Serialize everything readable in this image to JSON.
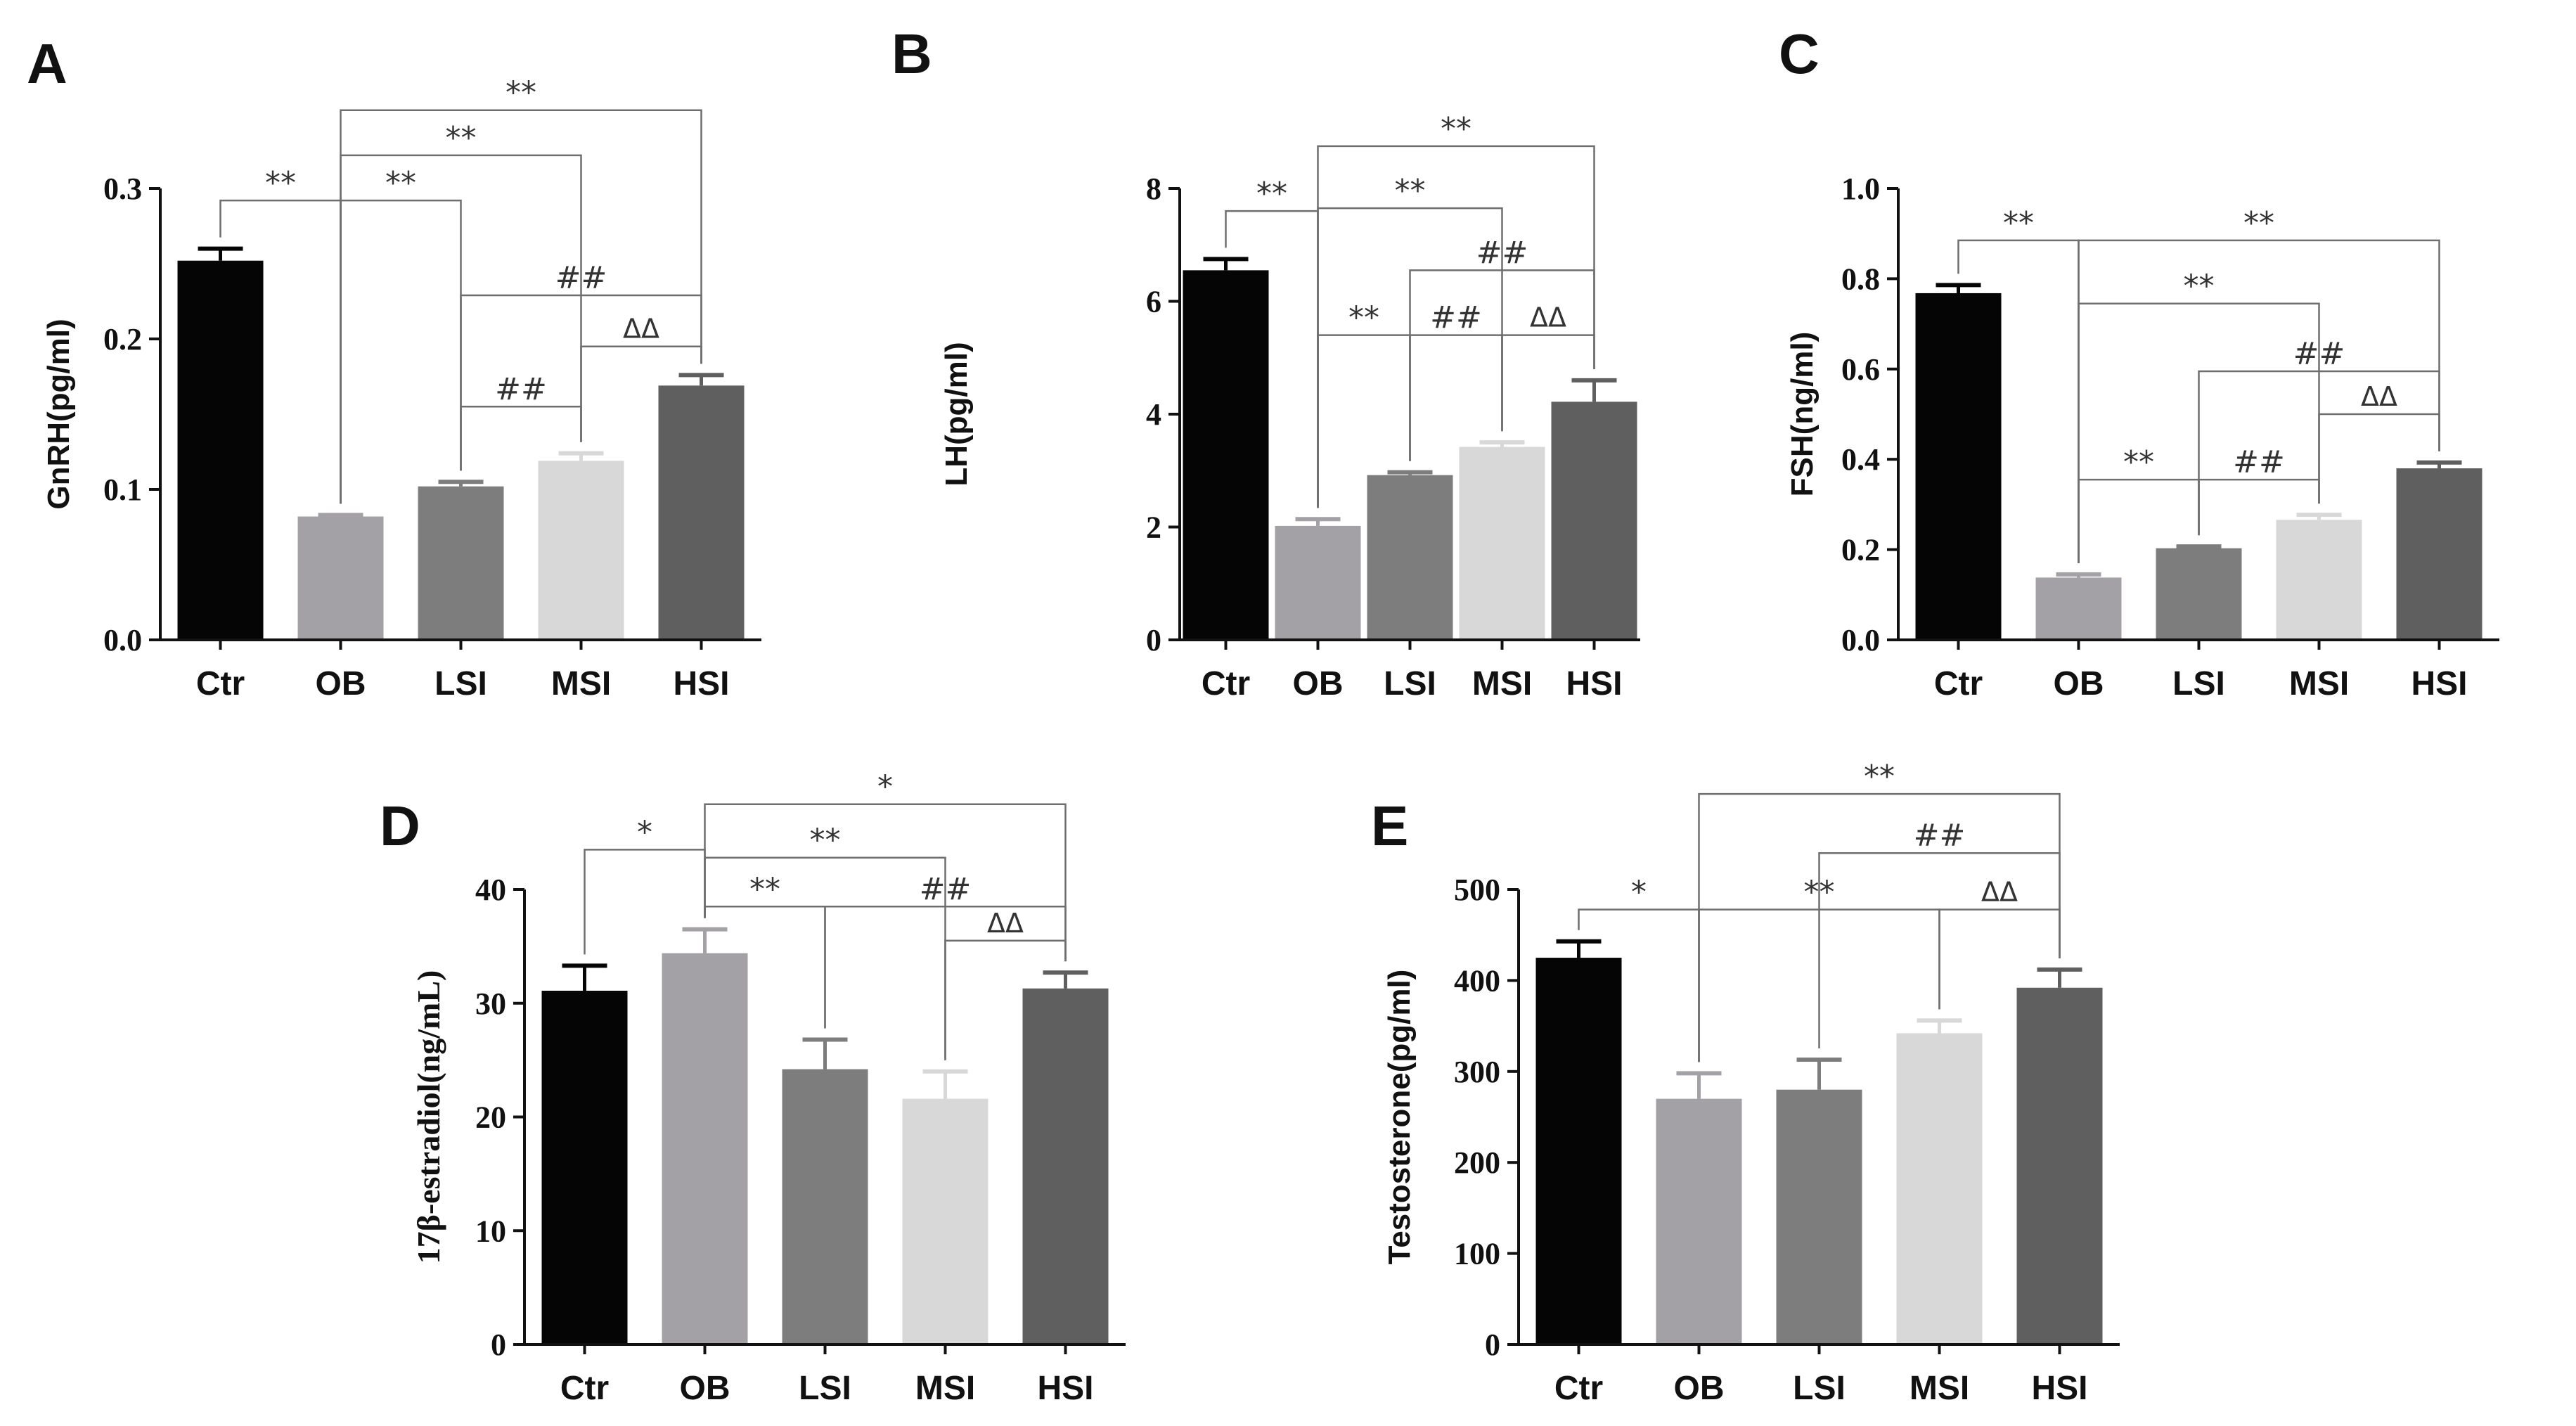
{
  "colors": {
    "Ctr": "#050505",
    "OB": "#a3a1a6",
    "LSI": "#7d7d7d",
    "MSI": "#d8d8d8",
    "HSI": "#5f5f5f",
    "axis": "#111111",
    "bracket": "#6e6e6e"
  },
  "chart_data": [
    {
      "panel": "A",
      "type": "bar",
      "categories": [
        "Ctr",
        "OB",
        "LSI",
        "MSI",
        "HSI"
      ],
      "values": [
        0.252,
        0.082,
        0.102,
        0.119,
        0.169
      ],
      "errors": [
        0.008,
        0.001,
        0.003,
        0.005,
        0.007
      ],
      "ylabel": "GnRH(pg/ml)",
      "ylim": [
        0,
        0.3
      ],
      "yticks": [
        "0.0",
        "0.1",
        "0.2",
        "0.3"
      ],
      "annotations": [
        {
          "from": "Ctr",
          "to": "OB",
          "label": "**",
          "level": 0.292
        },
        {
          "from": "OB",
          "to": "HSI",
          "label": "**",
          "level": 0.352
        },
        {
          "from": "OB",
          "to": "MSI",
          "label": "**",
          "level": 0.322
        },
        {
          "from": "OB",
          "to": "LSI",
          "label": "**",
          "level": 0.292
        },
        {
          "from": "LSI",
          "to": "HSI",
          "label": "##",
          "level": 0.229
        },
        {
          "from": "LSI",
          "to": "MSI",
          "label": "##",
          "level": 0.155
        },
        {
          "from": "MSI",
          "to": "HSI",
          "label": "ΔΔ",
          "level": 0.195
        }
      ]
    },
    {
      "panel": "B",
      "type": "bar",
      "categories": [
        "Ctr",
        "OB",
        "LSI",
        "MSI",
        "HSI"
      ],
      "values": [
        6.55,
        2.02,
        2.92,
        3.42,
        4.22
      ],
      "errors": [
        0.2,
        0.12,
        0.05,
        0.08,
        0.38
      ],
      "ylabel": "LH(pg/ml)",
      "ylim": [
        0,
        8
      ],
      "yticks": [
        "0",
        "2",
        "4",
        "6",
        "8"
      ],
      "annotations": [
        {
          "from": "Ctr",
          "to": "OB",
          "label": "**",
          "level": 7.6
        },
        {
          "from": "OB",
          "to": "HSI",
          "label": "**",
          "level": 8.75
        },
        {
          "from": "OB",
          "to": "MSI",
          "label": "**",
          "level": 7.65
        },
        {
          "from": "OB",
          "to": "LSI",
          "label": "**",
          "level": 5.4
        },
        {
          "from": "LSI",
          "to": "HSI",
          "label": "##",
          "level": 6.55
        },
        {
          "from": "LSI",
          "to": "MSI",
          "label": "##",
          "level": 5.4
        },
        {
          "from": "MSI",
          "to": "HSI",
          "label": "ΔΔ",
          "level": 5.4
        }
      ]
    },
    {
      "panel": "C",
      "type": "bar",
      "categories": [
        "Ctr",
        "OB",
        "LSI",
        "MSI",
        "HSI"
      ],
      "values": [
        0.768,
        0.138,
        0.203,
        0.266,
        0.38
      ],
      "errors": [
        0.018,
        0.007,
        0.004,
        0.011,
        0.013
      ],
      "ylabel": "FSH(ng/ml)",
      "ylim": [
        0,
        1.0
      ],
      "yticks": [
        "0.0",
        "0.2",
        "0.4",
        "0.6",
        "0.8",
        "1.0"
      ],
      "annotations": [
        {
          "from": "Ctr",
          "to": "OB",
          "label": "**",
          "level": 0.885
        },
        {
          "from": "OB",
          "to": "HSI",
          "label": "**",
          "level": 0.885
        },
        {
          "from": "OB",
          "to": "MSI",
          "label": "**",
          "level": 0.745
        },
        {
          "from": "OB",
          "to": "LSI",
          "label": "**",
          "level": 0.355
        },
        {
          "from": "LSI",
          "to": "HSI",
          "label": "##",
          "level": 0.595
        },
        {
          "from": "LSI",
          "to": "MSI",
          "label": "##",
          "level": 0.355
        },
        {
          "from": "MSI",
          "to": "HSI",
          "label": "ΔΔ",
          "level": 0.5
        }
      ]
    },
    {
      "panel": "D",
      "type": "bar",
      "categories": [
        "Ctr",
        "OB",
        "LSI",
        "MSI",
        "HSI"
      ],
      "values": [
        31.1,
        34.4,
        24.2,
        21.6,
        31.3
      ],
      "errors": [
        2.2,
        2.1,
        2.6,
        2.4,
        1.4
      ],
      "ylabel": "17β-estradiol(ng/mL)",
      "ylim": [
        0,
        40
      ],
      "yticks": [
        "0",
        "10",
        "20",
        "30",
        "40"
      ],
      "annotations": [
        {
          "from": "Ctr",
          "to": "OB",
          "label": "*",
          "level": 43.5
        },
        {
          "from": "OB",
          "to": "HSI",
          "label": "*",
          "level": 47.5
        },
        {
          "from": "OB",
          "to": "MSI",
          "label": "**",
          "level": 42.8
        },
        {
          "from": "OB",
          "to": "LSI",
          "label": "**",
          "level": 38.5
        },
        {
          "from": "LSI",
          "to": "HSI",
          "label": "##",
          "level": 38.5
        },
        {
          "from": "MSI",
          "to": "HSI",
          "label": "ΔΔ",
          "level": 35.5
        }
      ]
    },
    {
      "panel": "E",
      "type": "bar",
      "categories": [
        "Ctr",
        "OB",
        "LSI",
        "MSI",
        "HSI"
      ],
      "values": [
        425,
        270,
        280,
        342,
        392
      ],
      "errors": [
        18,
        28,
        33,
        14,
        20
      ],
      "ylabel": "Testosterone(pg/ml)",
      "ylim": [
        0,
        500
      ],
      "yticks": [
        "0",
        "100",
        "200",
        "300",
        "400",
        "500"
      ],
      "annotations": [
        {
          "from": "Ctr",
          "to": "OB",
          "label": "*",
          "level": 478
        },
        {
          "from": "OB",
          "to": "HSI",
          "label": "**",
          "level": 605
        },
        {
          "from": "OB",
          "to": "MSI",
          "label": "**",
          "level": 478
        },
        {
          "from": "LSI",
          "to": "HSI",
          "label": "##",
          "level": 540
        },
        {
          "from": "MSI",
          "to": "HSI",
          "label": "ΔΔ",
          "level": 478
        }
      ]
    }
  ]
}
